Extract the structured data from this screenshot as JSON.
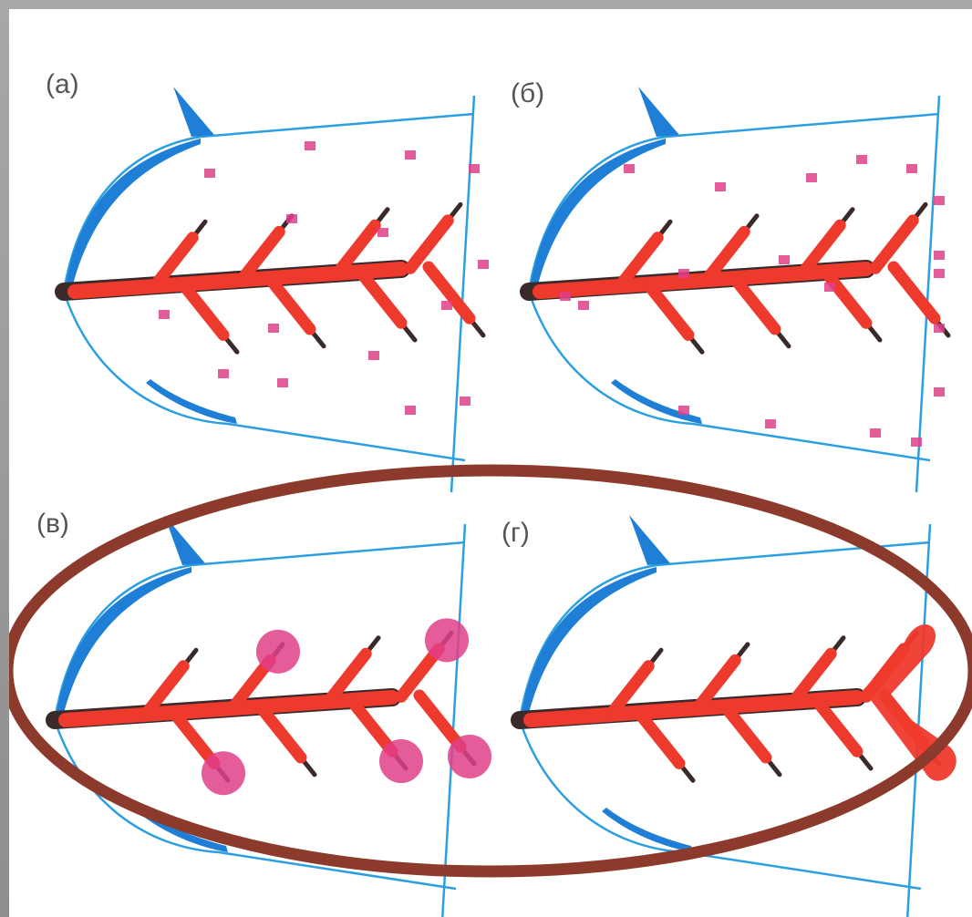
{
  "figure": {
    "panels": [
      {
        "id": "a",
        "label": "(а)",
        "dots": "scattered"
      },
      {
        "id": "b",
        "label": "(б)",
        "dots": "edge"
      },
      {
        "id": "v",
        "label": "(в)",
        "dots": "spots"
      },
      {
        "id": "g",
        "label": "(г)",
        "dots": "fused"
      }
    ]
  },
  "colors": {
    "fin_outline": "#2b9fe0",
    "fin_edge": "#1f7fd6",
    "ray": "#ee3a2c",
    "ray_dark": "#3a2a2a",
    "dot": "#e0408a",
    "highlight_ellipse": "#8b3a2b"
  }
}
